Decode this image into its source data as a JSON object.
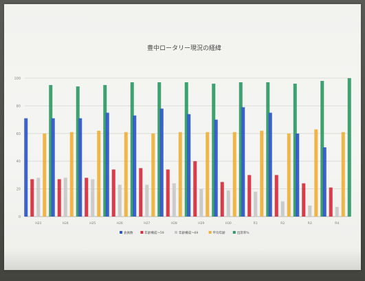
{
  "chart_data": {
    "type": "bar",
    "title": "豊中ロータリー現況の経緯",
    "categories": [
      "H23",
      "H24",
      "H25",
      "H26",
      "H27",
      "H28",
      "H29",
      "H30",
      "R1",
      "R2",
      "R3",
      "R4"
    ],
    "ylim": [
      0,
      100
    ],
    "yticks": [
      0,
      20,
      40,
      60,
      80,
      100
    ],
    "grid": true,
    "legend_position": "bottom",
    "series": [
      {
        "name": "会員数",
        "color": "#2f56c8",
        "values": [
          71,
          71,
          71,
          75,
          73,
          78,
          74,
          70,
          79,
          75,
          60,
          50
        ]
      },
      {
        "name": "年齢構成～59",
        "color": "#d62d3d",
        "values": [
          27,
          27,
          28,
          34,
          35,
          34,
          40,
          25,
          30,
          30,
          24,
          21
        ]
      },
      {
        "name": "年齢構成～69",
        "color": "#c8c8c8",
        "values": [
          28,
          28,
          27,
          23,
          23,
          24,
          20,
          19,
          18,
          11,
          8,
          7
        ]
      },
      {
        "name": "平均年齢",
        "color": "#f0b03a",
        "values": [
          60,
          61,
          62,
          61,
          60,
          61,
          61,
          61,
          62,
          60,
          63,
          61
        ]
      },
      {
        "name": "出席率%",
        "color": "#2f9a66",
        "values": [
          95,
          94,
          95,
          97,
          97,
          97,
          96,
          97,
          97,
          96,
          98,
          100
        ]
      }
    ]
  }
}
